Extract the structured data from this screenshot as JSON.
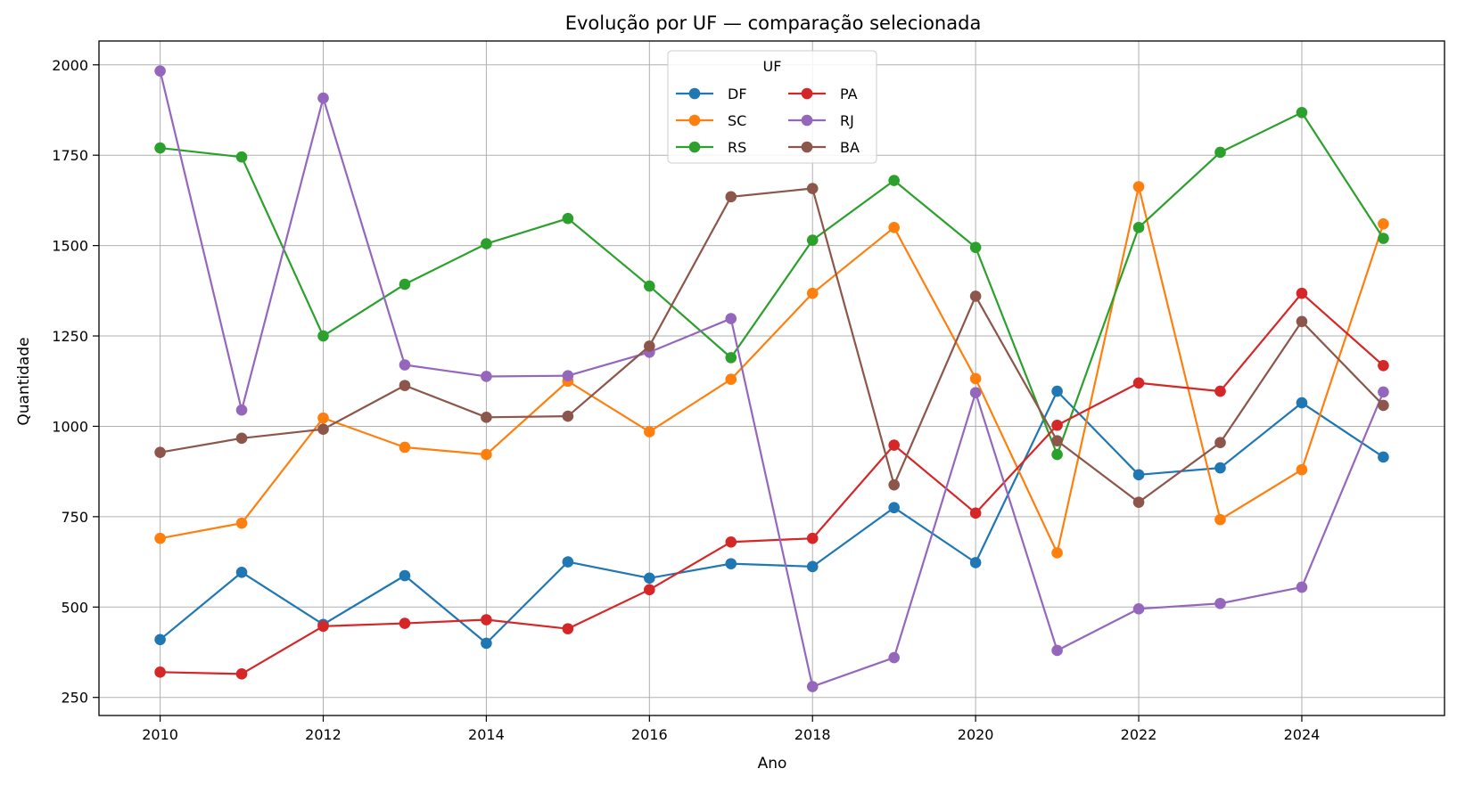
{
  "chart_data": {
    "type": "line",
    "title": "Evolução por UF — comparação selecionada",
    "xlabel": "Ano",
    "ylabel": "Quantidade",
    "xlim": [
      2009.25,
      2025.75
    ],
    "ylim": [
      200,
      2066
    ],
    "xticks": [
      2010,
      2012,
      2014,
      2016,
      2018,
      2020,
      2022,
      2024
    ],
    "yticks": [
      250,
      500,
      750,
      1000,
      1250,
      1500,
      1750,
      2000
    ],
    "grid": true,
    "legend": {
      "title": "UF",
      "position": "top-center",
      "columns": 2
    },
    "x": [
      2010,
      2011,
      2012,
      2013,
      2014,
      2015,
      2016,
      2017,
      2018,
      2019,
      2020,
      2021,
      2022,
      2023,
      2024,
      2025
    ],
    "series": [
      {
        "name": "DF",
        "color": "#1f77b4",
        "values": [
          410,
          596,
          452,
          587,
          400,
          625,
          580,
          620,
          612,
          775,
          623,
          1097,
          866,
          885,
          1065,
          915
        ]
      },
      {
        "name": "SC",
        "color": "#ff7f0e",
        "values": [
          690,
          732,
          1023,
          942,
          922,
          1125,
          985,
          1130,
          1368,
          1550,
          1132,
          650,
          1663,
          742,
          880,
          1560
        ]
      },
      {
        "name": "RS",
        "color": "#2ca02c",
        "values": [
          1770,
          1745,
          1250,
          1393,
          1505,
          1575,
          1388,
          1190,
          1515,
          1680,
          1495,
          922,
          1550,
          1758,
          1868,
          1520
        ]
      },
      {
        "name": "PA",
        "color": "#d62728",
        "values": [
          320,
          315,
          447,
          455,
          465,
          440,
          548,
          680,
          690,
          948,
          760,
          1003,
          1120,
          1097,
          1368,
          1168
        ]
      },
      {
        "name": "RJ",
        "color": "#9467bd",
        "values": [
          1983,
          1045,
          1908,
          1170,
          1138,
          1140,
          1205,
          1298,
          280,
          360,
          1093,
          380,
          495,
          510,
          555,
          1095
        ]
      },
      {
        "name": "BA",
        "color": "#8c564b",
        "values": [
          928,
          967,
          992,
          1113,
          1025,
          1028,
          1222,
          1635,
          1658,
          838,
          1360,
          960,
          790,
          955,
          1290,
          1058
        ]
      }
    ]
  }
}
